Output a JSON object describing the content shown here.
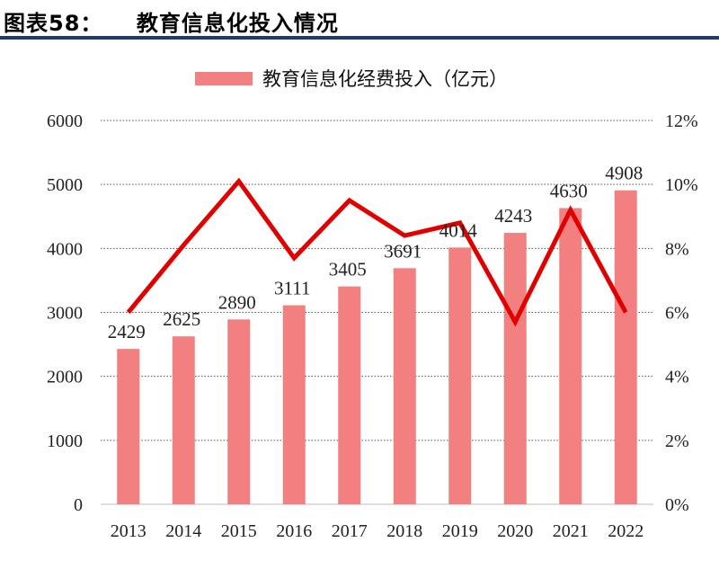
{
  "figure": {
    "title": "图表58：    教育信息化投入情况"
  },
  "chart_data": {
    "type": "bar",
    "categories": [
      "2013",
      "2014",
      "2015",
      "2016",
      "2017",
      "2018",
      "2019",
      "2020",
      "2021",
      "2022"
    ],
    "series": [
      {
        "name": "教育信息化经费投入（亿元）",
        "type": "bar",
        "axis": "left",
        "color": "#f28080",
        "values": [
          2429,
          2625,
          2890,
          3111,
          3405,
          3691,
          4014,
          4243,
          4630,
          4908
        ]
      },
      {
        "type": "line",
        "axis": "right",
        "color": "#e00000",
        "values": [
          6.0,
          8.1,
          10.1,
          7.7,
          9.5,
          8.4,
          8.8,
          5.7,
          9.2,
          6.0
        ]
      }
    ],
    "y_left": {
      "ylim": [
        0,
        6000
      ],
      "ticks": [
        0,
        1000,
        2000,
        3000,
        4000,
        5000,
        6000
      ]
    },
    "y_right": {
      "ylim": [
        0,
        12
      ],
      "ticks": [
        "0%",
        "2%",
        "4%",
        "6%",
        "8%",
        "10%",
        "12%"
      ]
    },
    "grid": "dotted-horizontal",
    "legend": "top-center",
    "data_labels": true
  }
}
